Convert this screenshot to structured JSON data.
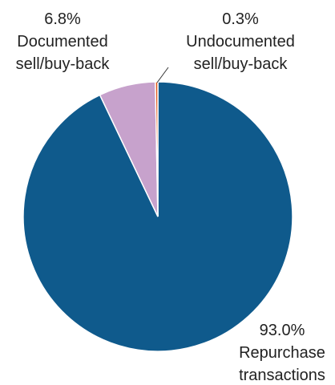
{
  "chart_data": {
    "type": "pie",
    "title": "",
    "slices": [
      {
        "label_line1": "Repurchase",
        "label_line2": "transactions",
        "percent_label": "93.0%",
        "value": 93.0,
        "color": "#0f5a8c"
      },
      {
        "label_line1": "Documented",
        "label_line2": "sell/buy-back",
        "percent_label": "6.8%",
        "value": 6.8,
        "color": "#c7a2cc"
      },
      {
        "label_line1": "Undocumented",
        "label_line2": "sell/buy-back",
        "percent_label": "0.3%",
        "value": 0.3,
        "color": "#e05a1e"
      }
    ]
  }
}
